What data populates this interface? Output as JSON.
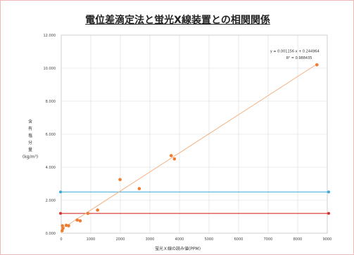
{
  "chart_data": {
    "type": "scatter",
    "title": "電位差滴定法と蛍光X線装置との相関関係",
    "xlabel": "蛍光Ｘ線の読み値(PPM)",
    "ylabel": "含\n有\n塩\n分\n量\n(kg/m³)",
    "xlim": [
      0,
      9000
    ],
    "ylim": [
      0,
      12
    ],
    "x_ticks": [
      "0",
      "1000",
      "2000",
      "3000",
      "4000",
      "5000",
      "6000",
      "7000",
      "8000",
      "9000"
    ],
    "y_ticks": [
      "0.000",
      "2.000",
      "4.000",
      "6.000",
      "8.000",
      "10.000",
      "12.000"
    ],
    "grid": true,
    "series": [
      {
        "color": "#ed7d31",
        "points": [
          [
            30,
            0.15
          ],
          [
            40,
            0.45
          ],
          [
            60,
            0.3
          ],
          [
            170,
            0.48
          ],
          [
            250,
            0.45
          ],
          [
            540,
            0.8
          ],
          [
            640,
            0.75
          ],
          [
            900,
            1.2
          ],
          [
            1230,
            1.4
          ],
          [
            1990,
            3.25
          ],
          [
            2640,
            2.7
          ],
          [
            3720,
            4.7
          ],
          [
            3830,
            4.5
          ],
          [
            8650,
            10.2
          ]
        ]
      }
    ],
    "trendline": {
      "slope": 0.001156,
      "intercept": 0.244964,
      "equation": "y = 0.001156 x + 0.244964",
      "r2": "R² = 0.988435",
      "color": "#f4b183"
    },
    "reference_lines": [
      {
        "y": 2.5,
        "color": "#3aa8d8"
      },
      {
        "y": 1.2,
        "color": "#d9302c"
      }
    ]
  }
}
